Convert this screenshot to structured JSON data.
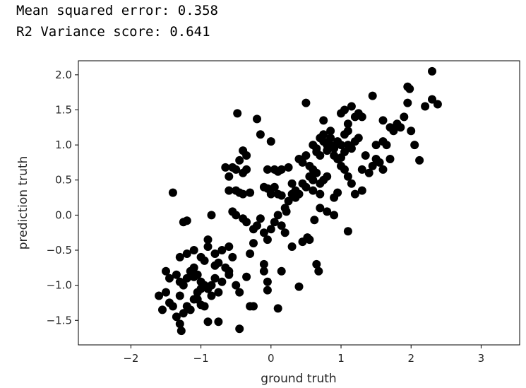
{
  "output": {
    "mse_line": "Mean squared error: 0.358",
    "r2_line": "R2 Variance score: 0.641"
  },
  "chart_data": {
    "type": "scatter",
    "title": "",
    "xlabel": "ground truth",
    "ylabel": "prediction truth",
    "xlim": [
      -2.75,
      3.55
    ],
    "ylim": [
      -1.85,
      2.2
    ],
    "xticks": [
      -2,
      -1,
      0,
      1,
      2,
      3
    ],
    "yticks": [
      -1.5,
      -1.0,
      -0.5,
      0.0,
      0.5,
      1.0,
      1.5,
      2.0
    ],
    "xtick_labels": [
      "−2",
      "−1",
      "0",
      "1",
      "2",
      "3"
    ],
    "ytick_labels": [
      "−1.5",
      "−1.0",
      "−0.5",
      "0.0",
      "0.5",
      "1.0",
      "1.5",
      "2.0"
    ],
    "grid": false,
    "marker_color": "#000000",
    "points": [
      [
        -1.4,
        0.32
      ],
      [
        -1.25,
        -0.1
      ],
      [
        -1.2,
        -0.08
      ],
      [
        -0.85,
        0.0
      ],
      [
        -0.9,
        -0.35
      ],
      [
        -1.3,
        -0.6
      ],
      [
        -1.2,
        -0.55
      ],
      [
        -1.1,
        -0.5
      ],
      [
        -1.0,
        -0.6
      ],
      [
        -1.5,
        -0.8
      ],
      [
        -1.45,
        -0.9
      ],
      [
        -1.35,
        -0.85
      ],
      [
        -1.3,
        -0.95
      ],
      [
        -1.25,
        -1.0
      ],
      [
        -1.2,
        -0.9
      ],
      [
        -1.15,
        -0.8
      ],
      [
        -1.1,
        -0.75
      ],
      [
        -1.05,
        -0.85
      ],
      [
        -1.0,
        -0.95
      ],
      [
        -0.95,
        -1.0
      ],
      [
        -1.6,
        -1.15
      ],
      [
        -1.55,
        -1.35
      ],
      [
        -1.5,
        -1.1
      ],
      [
        -1.45,
        -1.25
      ],
      [
        -1.4,
        -1.3
      ],
      [
        -1.35,
        -1.45
      ],
      [
        -1.3,
        -1.55
      ],
      [
        -1.28,
        -1.65
      ],
      [
        -1.25,
        -1.4
      ],
      [
        -1.2,
        -1.3
      ],
      [
        -1.15,
        -1.35
      ],
      [
        -1.1,
        -1.2
      ],
      [
        -1.05,
        -1.1
      ],
      [
        -1.0,
        -1.05
      ],
      [
        -0.95,
        -1.3
      ],
      [
        -0.9,
        -1.05
      ],
      [
        -0.85,
        -1.0
      ],
      [
        -0.8,
        -0.9
      ],
      [
        -0.75,
        -1.1
      ],
      [
        -0.7,
        -0.95
      ],
      [
        -0.9,
        -1.52
      ],
      [
        -0.75,
        -1.52
      ],
      [
        -0.45,
        -1.62
      ],
      [
        -0.3,
        -1.3
      ],
      [
        -0.25,
        -1.3
      ],
      [
        -0.45,
        -1.1
      ],
      [
        -0.5,
        -1.0
      ],
      [
        -0.6,
        -0.85
      ],
      [
        -0.65,
        -0.75
      ],
      [
        -0.55,
        -0.6
      ],
      [
        -0.7,
        -0.5
      ],
      [
        -0.8,
        -0.55
      ],
      [
        -0.9,
        -0.45
      ],
      [
        -0.95,
        -0.65
      ],
      [
        -0.6,
        -0.45
      ],
      [
        -0.65,
        0.68
      ],
      [
        -0.55,
        0.68
      ],
      [
        -0.5,
        0.65
      ],
      [
        -0.4,
        0.6
      ],
      [
        -0.35,
        0.65
      ],
      [
        -0.45,
        0.78
      ],
      [
        -0.4,
        0.92
      ],
      [
        -0.35,
        0.85
      ],
      [
        -0.5,
        0.35
      ],
      [
        -0.45,
        0.32
      ],
      [
        -0.4,
        0.3
      ],
      [
        -0.3,
        0.32
      ],
      [
        -0.6,
        0.55
      ],
      [
        -0.6,
        0.35
      ],
      [
        -0.55,
        0.05
      ],
      [
        -0.5,
        0.0
      ],
      [
        -0.4,
        -0.05
      ],
      [
        -0.35,
        -0.1
      ],
      [
        -0.25,
        -0.2
      ],
      [
        -0.15,
        -0.05
      ],
      [
        -0.2,
        -0.15
      ],
      [
        -0.1,
        -0.25
      ],
      [
        -0.05,
        -0.35
      ],
      [
        0.0,
        -0.2
      ],
      [
        0.05,
        -0.1
      ],
      [
        0.1,
        0.0
      ],
      [
        0.15,
        -0.15
      ],
      [
        0.2,
        -0.25
      ],
      [
        -0.48,
        1.45
      ],
      [
        -0.2,
        1.37
      ],
      [
        -0.15,
        1.15
      ],
      [
        0.0,
        1.05
      ],
      [
        0.05,
        0.65
      ],
      [
        -0.05,
        0.65
      ],
      [
        0.1,
        0.62
      ],
      [
        -0.1,
        0.4
      ],
      [
        -0.05,
        0.38
      ],
      [
        0.0,
        0.3
      ],
      [
        0.05,
        0.4
      ],
      [
        0.1,
        0.3
      ],
      [
        0.15,
        0.28
      ],
      [
        0.2,
        0.1
      ],
      [
        0.22,
        0.05
      ],
      [
        0.25,
        0.2
      ],
      [
        0.3,
        0.3
      ],
      [
        0.35,
        0.35
      ],
      [
        0.4,
        0.3
      ],
      [
        0.45,
        0.45
      ],
      [
        0.5,
        0.4
      ],
      [
        0.55,
        0.55
      ],
      [
        0.6,
        0.5
      ],
      [
        0.65,
        0.6
      ],
      [
        0.7,
        0.45
      ],
      [
        0.75,
        0.5
      ],
      [
        0.8,
        0.55
      ],
      [
        0.4,
        0.8
      ],
      [
        0.45,
        0.75
      ],
      [
        0.5,
        0.85
      ],
      [
        0.55,
        0.7
      ],
      [
        0.6,
        0.65
      ],
      [
        0.65,
        0.9
      ],
      [
        0.7,
        0.85
      ],
      [
        0.75,
        1.05
      ],
      [
        0.8,
        1.0
      ],
      [
        0.85,
        1.1
      ],
      [
        0.9,
        0.95
      ],
      [
        0.95,
        1.05
      ],
      [
        1.0,
        1.0
      ],
      [
        1.05,
        1.15
      ],
      [
        1.1,
        1.2
      ],
      [
        0.5,
        1.6
      ],
      [
        0.75,
        1.35
      ],
      [
        0.85,
        1.2
      ],
      [
        1.0,
        1.45
      ],
      [
        1.05,
        1.5
      ],
      [
        1.1,
        1.3
      ],
      [
        1.15,
        1.55
      ],
      [
        1.2,
        1.4
      ],
      [
        1.25,
        1.45
      ],
      [
        1.3,
        1.4
      ],
      [
        1.0,
        0.7
      ],
      [
        1.05,
        0.65
      ],
      [
        1.1,
        0.55
      ],
      [
        1.15,
        0.45
      ],
      [
        1.2,
        0.3
      ],
      [
        1.3,
        0.35
      ],
      [
        1.4,
        0.6
      ],
      [
        1.45,
        0.7
      ],
      [
        1.5,
        0.8
      ],
      [
        1.55,
        0.75
      ],
      [
        1.45,
        1.7
      ],
      [
        1.6,
        1.35
      ],
      [
        1.7,
        1.25
      ],
      [
        1.75,
        1.2
      ],
      [
        1.8,
        1.3
      ],
      [
        1.85,
        1.25
      ],
      [
        1.9,
        1.4
      ],
      [
        1.95,
        1.6
      ],
      [
        1.95,
        1.83
      ],
      [
        1.98,
        1.8
      ],
      [
        2.0,
        1.2
      ],
      [
        2.05,
        1.0
      ],
      [
        2.12,
        0.78
      ],
      [
        2.2,
        1.55
      ],
      [
        2.3,
        2.05
      ],
      [
        2.3,
        1.65
      ],
      [
        2.38,
        1.58
      ],
      [
        1.1,
        -0.23
      ],
      [
        0.9,
        0.0
      ],
      [
        0.8,
        0.05
      ],
      [
        0.7,
        0.1
      ],
      [
        0.62,
        -0.07
      ],
      [
        0.55,
        -0.35
      ],
      [
        0.52,
        -0.32
      ],
      [
        0.45,
        -0.38
      ],
      [
        0.65,
        -0.7
      ],
      [
        0.68,
        -0.8
      ],
      [
        0.4,
        -1.02
      ],
      [
        0.1,
        -1.33
      ],
      [
        0.15,
        -0.8
      ],
      [
        -0.1,
        -0.7
      ],
      [
        -0.1,
        -0.8
      ],
      [
        -0.05,
        -0.95
      ],
      [
        -0.05,
        -1.07
      ],
      [
        -0.3,
        -0.55
      ],
      [
        -0.25,
        -0.4
      ],
      [
        -0.35,
        -0.88
      ],
      [
        -0.6,
        -0.8
      ],
      [
        -0.8,
        -0.72
      ],
      [
        -0.85,
        -1.15
      ],
      [
        -1.05,
        -1.2
      ],
      [
        -1.1,
        -0.88
      ],
      [
        -1.3,
        -1.15
      ],
      [
        -1.0,
        -1.28
      ],
      [
        0.3,
        -0.45
      ],
      [
        0.25,
        0.68
      ],
      [
        0.15,
        0.65
      ],
      [
        0.3,
        0.45
      ],
      [
        0.35,
        0.25
      ],
      [
        0.6,
        0.35
      ],
      [
        0.7,
        0.3
      ],
      [
        0.9,
        0.25
      ],
      [
        0.95,
        0.32
      ],
      [
        0.6,
        1.0
      ],
      [
        0.65,
        0.95
      ],
      [
        0.7,
        1.1
      ],
      [
        0.75,
        1.15
      ],
      [
        0.8,
        0.92
      ],
      [
        0.85,
        1.0
      ],
      [
        0.9,
        0.85
      ],
      [
        0.95,
        0.8
      ],
      [
        1.0,
        0.82
      ],
      [
        1.05,
        0.9
      ],
      [
        1.1,
        1.0
      ],
      [
        1.15,
        0.95
      ],
      [
        1.2,
        1.05
      ],
      [
        1.25,
        1.1
      ],
      [
        1.35,
        0.85
      ],
      [
        1.5,
        1.0
      ],
      [
        1.6,
        1.05
      ],
      [
        1.65,
        1.0
      ],
      [
        1.7,
        0.8
      ],
      [
        1.6,
        0.65
      ],
      [
        1.3,
        0.65
      ],
      [
        -0.75,
        -0.68
      ]
    ]
  }
}
